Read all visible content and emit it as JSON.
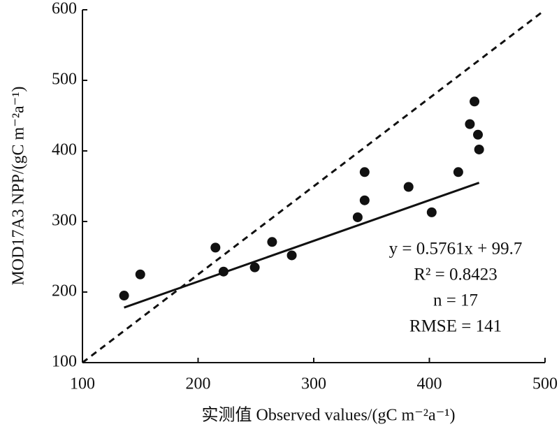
{
  "chart_data": {
    "type": "scatter",
    "x_label": "实测值 Observed values/(gC m⁻²a⁻¹)",
    "y_label": "MOD17A3 NPP/(gC m⁻²a⁻¹)",
    "x": [
      136,
      150,
      215,
      222,
      249,
      264,
      281,
      338,
      344,
      344,
      382,
      402,
      425,
      435,
      439,
      442,
      443
    ],
    "values": [
      195,
      225,
      263,
      229,
      235,
      271,
      252,
      306,
      330,
      370,
      349,
      313,
      370,
      438,
      470,
      423,
      402
    ],
    "color": "#111111",
    "xlim": [
      100,
      500
    ],
    "ylim": [
      100,
      600
    ],
    "xticks": [
      100,
      200,
      300,
      400,
      500
    ],
    "yticks": [
      100,
      200,
      300,
      400,
      500,
      600
    ],
    "trendline": {
      "slope": 0.5761,
      "intercept": 99.7
    },
    "annotations": [
      "y = 0.5761x + 99.7",
      "R² = 0.8423",
      "n = 17",
      "RMSE = 141"
    ]
  }
}
